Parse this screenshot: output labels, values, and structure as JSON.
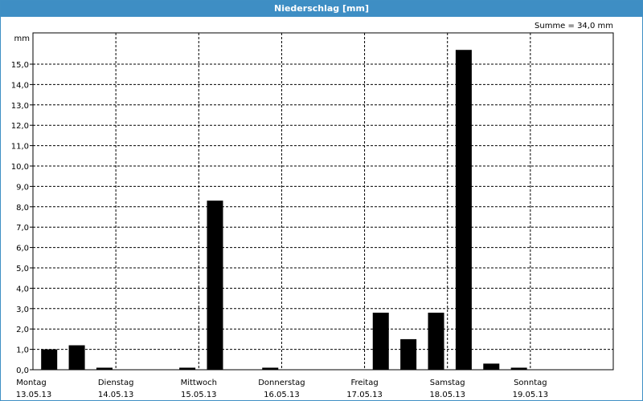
{
  "window": {
    "title": "Niederschlag [mm]"
  },
  "summary": "Summe = 34,0 mm",
  "chart_data": {
    "type": "bar",
    "title": "Niederschlag [mm]",
    "ylabel": "mm",
    "ylim": [
      0,
      16
    ],
    "grid": true,
    "y_ticks": [
      "0,0",
      "1,0",
      "2,0",
      "3,0",
      "4,0",
      "5,0",
      "6,0",
      "7,0",
      "8,0",
      "9,0",
      "10,0",
      "11,0",
      "12,0",
      "13,0",
      "14,0",
      "15,0"
    ],
    "days": [
      {
        "name": "Montag",
        "date": "13.05.13"
      },
      {
        "name": "Dienstag",
        "date": "14.05.13"
      },
      {
        "name": "Mittwoch",
        "date": "15.05.13"
      },
      {
        "name": "Donnerstag",
        "date": "16.05.13"
      },
      {
        "name": "Freitag",
        "date": "17.05.13"
      },
      {
        "name": "Samstag",
        "date": "18.05.13"
      },
      {
        "name": "Sonntag",
        "date": "19.05.13"
      }
    ],
    "bars_per_day": 3,
    "values": [
      1.0,
      1.2,
      0.1,
      0,
      0,
      0.1,
      8.3,
      0,
      0.1,
      0,
      0,
      0,
      2.8,
      1.5,
      2.8,
      15.7,
      0.3,
      0.1
    ]
  }
}
